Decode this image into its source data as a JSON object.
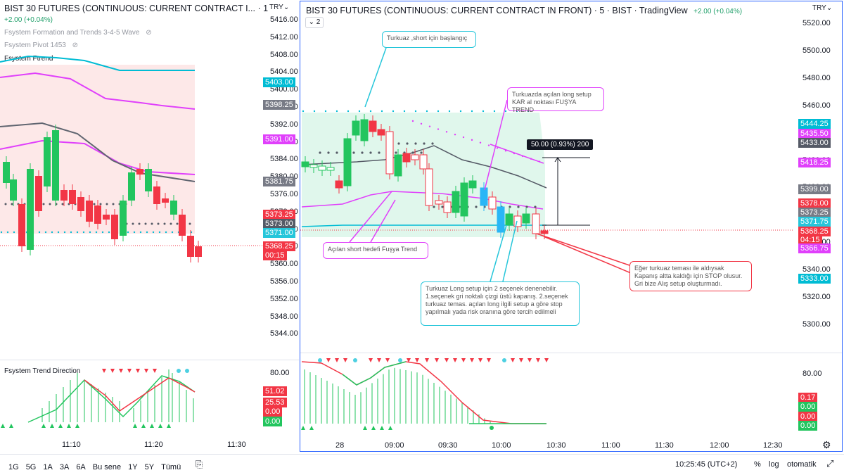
{
  "left": {
    "title": "BIST 30 FUTURES (CONTINUOUS: CURRENT CONTRACT I... · 1",
    "change": "+2.00 (+0.04%)",
    "currency": "TRY",
    "indicators": [
      "Fsystem Formation and Trends 3-4-5 Wave",
      "Fsystem Pivot 1453",
      "Fsystem Ftrend"
    ],
    "price_ticks": [
      "5416.00",
      "5412.00",
      "5408.00",
      "5404.00",
      "5400.00",
      "5396.00",
      "5392.00",
      "5388.00",
      "5384.00",
      "5380.00",
      "5376.00",
      "5372.00",
      "5368.00",
      "5364.00",
      "5360.00",
      "5356.00",
      "5352.00",
      "5348.00",
      "5344.00"
    ],
    "price_tags": [
      {
        "text": "5403.00",
        "color": "#00bcd4"
      },
      {
        "text": "5398.25",
        "color": "#787b86"
      },
      {
        "text": "5391.00",
        "color": "#e040fb"
      },
      {
        "text": "5381.75",
        "color": "#787b86"
      },
      {
        "text": "5373.25",
        "color": "#f23645"
      },
      {
        "text": "5373.00",
        "color": "#555a66"
      },
      {
        "text": "5371.00",
        "color": "#26c6da"
      },
      {
        "text": "5368.25",
        "color": "#f23645"
      },
      {
        "text": "00:15",
        "color": "#f23645"
      }
    ],
    "time_ticks": [
      "11:10",
      "11:20",
      "11:30"
    ],
    "osc_title": "Fsystem Trend Direction",
    "osc_ticks": [
      "80.00"
    ],
    "osc_tags": [
      {
        "text": "51.02",
        "color": "#f23645"
      },
      {
        "text": "25.53",
        "color": "#f23645"
      },
      {
        "text": "0.00",
        "color": "#f23645"
      },
      {
        "text": "0.00",
        "color": "#22c55e"
      }
    ]
  },
  "right": {
    "title": "BIST 30 FUTURES (CONTINUOUS: CURRENT CONTRACT IN FRONT) · 5 · BIST · TradingView",
    "change": "+2.00 (+0.04%)",
    "currency": "TRY",
    "collapse_count": "2",
    "price_ticks": [
      "5520.00",
      "5500.00",
      "5480.00",
      "5460.00",
      "5440.00",
      "5420.00",
      "5400.00",
      "5380.00",
      "5360.00",
      "5340.00",
      "5320.00",
      "5300.00"
    ],
    "price_tags": [
      {
        "text": "5444.25",
        "color": "#00bcd4"
      },
      {
        "text": "5435.50",
        "color": "#e040fb"
      },
      {
        "text": "5433.00",
        "color": "#555a66"
      },
      {
        "text": "5418.25",
        "color": "#e040fb"
      },
      {
        "text": "5399.00",
        "color": "#787b86"
      },
      {
        "text": "5378.00",
        "color": "#f23645"
      },
      {
        "text": "5373.25",
        "color": "#787b86"
      },
      {
        "text": "5371.75",
        "color": "#26c6da"
      },
      {
        "text": "5368.25",
        "color": "#f23645"
      },
      {
        "text": "04:15",
        "color": "#f23645"
      },
      {
        "text": "5366.75",
        "color": "#e040fb"
      },
      {
        "text": "5333.00",
        "color": "#00bcd4"
      }
    ],
    "time_ticks": [
      "28",
      "09:00",
      "09:30",
      "10:00",
      "10:30",
      "11:00",
      "11:30",
      "12:00",
      "12:30"
    ],
    "measure_label": "50.00 (0.93%) 200",
    "callouts": [
      {
        "text": "Turkuaz ,short için başlangıç"
      },
      {
        "text": "Turkuazda açılan long setup KAR al noktası FUŞYA TREND"
      },
      {
        "text": "Açılan short hedefi Fuşya Trend"
      },
      {
        "text": "Turkuaz Long setup için 2 seçenek denenebilir. 1.seçenek gri noktalı çizgi üstü kapanış. 2.seçenek turkuaz temas. açılan long ilgili setup a göre stop yapılmalı yada risk oranına göre tercih edilmeli"
      },
      {
        "text": "Eğer turkuaz teması ile aldıysak Kapanış altta kaldığı için STOP olusur. Gri bize Alış setup oluşturmadı."
      }
    ],
    "osc_ticks": [
      "80.00"
    ],
    "osc_tags": [
      {
        "text": "0.17",
        "color": "#f23645"
      },
      {
        "text": "0.00",
        "color": "#22c55e"
      },
      {
        "text": "0.00",
        "color": "#f23645"
      },
      {
        "text": "0.00",
        "color": "#22c55e"
      }
    ]
  },
  "bottom": {
    "ranges": [
      "1G",
      "5G",
      "1A",
      "3A",
      "6A",
      "Bu sene",
      "1Y",
      "5Y",
      "Tümü"
    ],
    "clock": "10:25:45 (UTC+2)",
    "percent": "%",
    "log": "log",
    "auto": "otomatik"
  },
  "colors": {
    "up": "#22c55e",
    "down": "#f23645",
    "turquoise": "#00bcd4",
    "fuchsia": "#e040fb",
    "gray": "#787b86",
    "accent": "#2962ff"
  }
}
